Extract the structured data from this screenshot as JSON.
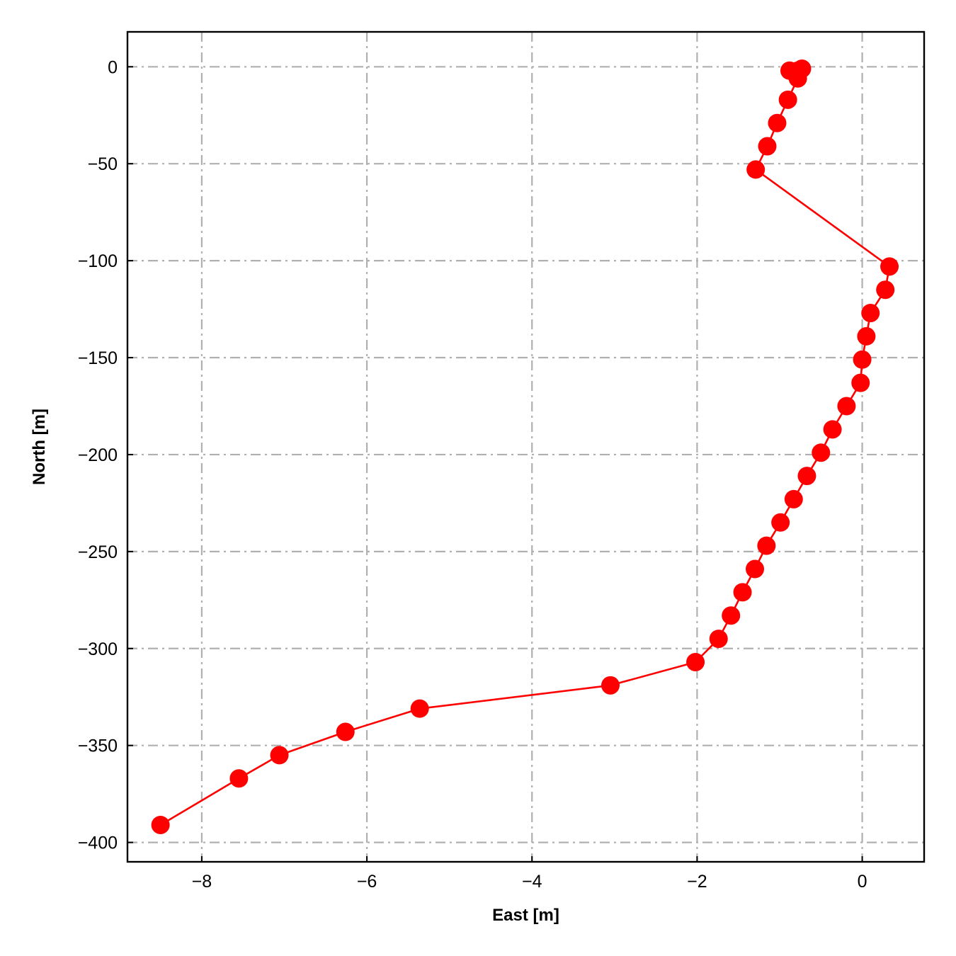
{
  "chart_data": {
    "type": "line",
    "xlabel": "East [m]",
    "ylabel": "North [m]",
    "xlim": [
      -8.9,
      0.75
    ],
    "ylim": [
      -410,
      18
    ],
    "xticks": [
      -8,
      -6,
      -4,
      -2,
      0
    ],
    "xtick_labels": [
      "−8",
      "−6",
      "−4",
      "−2",
      "0"
    ],
    "yticks": [
      0,
      -50,
      -100,
      -150,
      -200,
      -250,
      -300,
      -350,
      -400
    ],
    "ytick_labels": [
      "0",
      "−50",
      "−100",
      "−150",
      "−200",
      "−250",
      "−300",
      "−350",
      "−400"
    ],
    "grid": true,
    "series": [
      {
        "color": "#ff0000",
        "marker": "circle",
        "points": [
          {
            "x": -0.73,
            "y": -1
          },
          {
            "x": -0.78,
            "y": -2
          },
          {
            "x": -0.88,
            "y": -2
          },
          {
            "x": -0.78,
            "y": -6
          },
          {
            "x": -0.9,
            "y": -17
          },
          {
            "x": -1.03,
            "y": -29
          },
          {
            "x": -1.15,
            "y": -41
          },
          {
            "x": -1.29,
            "y": -53
          },
          {
            "x": 0.33,
            "y": -103
          },
          {
            "x": 0.28,
            "y": -115
          },
          {
            "x": 0.1,
            "y": -127
          },
          {
            "x": 0.05,
            "y": -139
          },
          {
            "x": 0.0,
            "y": -151
          },
          {
            "x": -0.02,
            "y": -163
          },
          {
            "x": -0.19,
            "y": -175
          },
          {
            "x": -0.36,
            "y": -187
          },
          {
            "x": -0.5,
            "y": -199
          },
          {
            "x": -0.67,
            "y": -211
          },
          {
            "x": -0.83,
            "y": -223
          },
          {
            "x": -0.99,
            "y": -235
          },
          {
            "x": -1.16,
            "y": -247
          },
          {
            "x": -1.3,
            "y": -259
          },
          {
            "x": -1.45,
            "y": -271
          },
          {
            "x": -1.59,
            "y": -283
          },
          {
            "x": -1.74,
            "y": -295
          },
          {
            "x": -2.02,
            "y": -307
          },
          {
            "x": -3.05,
            "y": -319
          },
          {
            "x": -5.36,
            "y": -331
          },
          {
            "x": -6.26,
            "y": -343
          },
          {
            "x": -7.06,
            "y": -355
          },
          {
            "x": -7.55,
            "y": -367
          },
          {
            "x": -8.5,
            "y": -391
          }
        ]
      }
    ]
  }
}
